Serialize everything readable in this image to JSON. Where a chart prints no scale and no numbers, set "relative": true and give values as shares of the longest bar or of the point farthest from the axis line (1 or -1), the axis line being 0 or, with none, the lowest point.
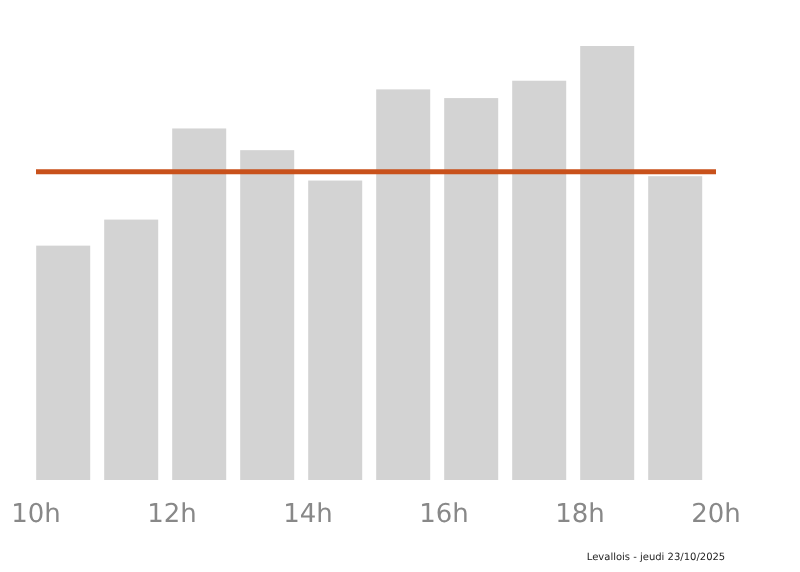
{
  "chart_data": {
    "type": "bar",
    "relative": true,
    "x": [
      10.4,
      11.4,
      12.4,
      13.4,
      14.4,
      15.4,
      16.4,
      17.4,
      18.4,
      19.4
    ],
    "values": [
      0.54,
      0.6,
      0.81,
      0.76,
      0.69,
      0.9,
      0.88,
      0.92,
      1,
      0.7
    ],
    "color": "#d3d3d3",
    "xlim": [
      10,
      20
    ],
    "xticks": [
      {
        "value": 10,
        "label": "10h"
      },
      {
        "value": 12,
        "label": "12h"
      },
      {
        "value": 14,
        "label": "14h"
      },
      {
        "value": 16,
        "label": "16h"
      },
      {
        "value": 18,
        "label": "18h"
      },
      {
        "value": 20,
        "label": "20h"
      }
    ],
    "ref_lines": [
      {
        "axis": "y",
        "value": 0.71,
        "color": "#c8511b",
        "line_style": "solid"
      }
    ],
    "annotations": [
      "Levallois - jeudi 23/10/2025"
    ],
    "grid": false
  }
}
